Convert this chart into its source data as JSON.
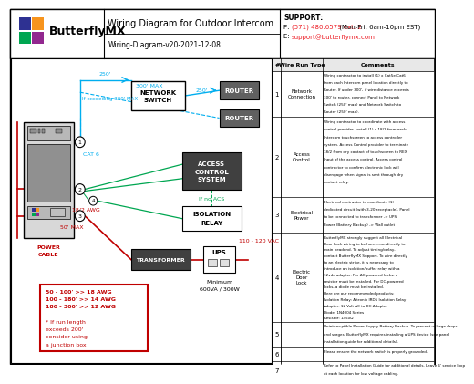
{
  "title": "Wiring Diagram for Outdoor Intercom",
  "subtitle": "Wiring-Diagram-v20-2021-12-08",
  "support_phone_label": "P:",
  "support_phone": "(571) 480.6579 ext. 2",
  "support_phone_suffix": " (Mon-Fri, 6am-10pm EST)",
  "support_email_label": "E:",
  "support_email": "support@butterflymx.com",
  "bg_color": "#ffffff",
  "table_rows": [
    {
      "num": "1",
      "type": "Network Connection",
      "comment": "Wiring contractor to install (1) x Cat5e/Cat6\nfrom each Intercom panel location directly to\nRouter. If under 300', if wire distance exceeds\n300' to router, connect Panel to Network\nSwitch (250' max) and Network Switch to\nRouter (250' max)."
    },
    {
      "num": "2",
      "type": "Access Control",
      "comment": "Wiring contractor to coordinate with access\ncontrol provider, install (1) x 18/2 from each\nIntercom touchscreen to access controller\nsystem. Access Control provider to terminate\n18/2 from dry contact of touchscreen to REX\nInput of the access control. Access control\ncontractor to confirm electronic lock will\ndisengage when signal is sent through dry\ncontact relay."
    },
    {
      "num": "3",
      "type": "Electrical Power",
      "comment": "Electrical contractor to coordinate (1)\ndedicated circuit (with 3-20 receptacle). Panel\nto be connected to transformer -> UPS\nPower (Battery Backup) -> Wall outlet"
    },
    {
      "num": "4",
      "type": "Electric Door Lock",
      "comment": "ButterflyMX strongly suggest all Electrical\nDoor Lock wiring to be home-run directly to\nmain headend. To adjust timing/delay,\ncontact ButterflyMX Support. To wire directly\nto an electric strike, it is necessary to\nintroduce an isolation/buffer relay with a\n12vdc adapter. For AC-powered locks, a\nresistor must be installed. For DC-powered\nlocks, a diode must be installed.\nHere are our recommended products:\nIsolation Relay: Altronix IRD5 Isolation Relay\nAdapter: 12 Volt AC to DC Adapter\nDiode: 1N4004 Series\nResistor: 1450Ω"
    },
    {
      "num": "5",
      "type": "",
      "comment": "Uninterruptible Power Supply Battery Backup. To prevent voltage drops\nand surges, ButterflyMX requires installing a UPS device (see panel\ninstallation guide for additional details)."
    },
    {
      "num": "6",
      "type": "",
      "comment": "Please ensure the network switch is properly grounded."
    },
    {
      "num": "7",
      "type": "",
      "comment": "Refer to Panel Installation Guide for additional details. Leave 6' service loop\nat each location for low voltage cabling."
    }
  ],
  "colors": {
    "cyan": "#00aeef",
    "green": "#00a651",
    "red": "#ed1c24",
    "dark_red": "#c00000",
    "black": "#000000",
    "dark_gray": "#404040",
    "mid_gray": "#808080",
    "light_gray": "#e8e8e8",
    "router_gray": "#606060",
    "white": "#ffffff"
  }
}
